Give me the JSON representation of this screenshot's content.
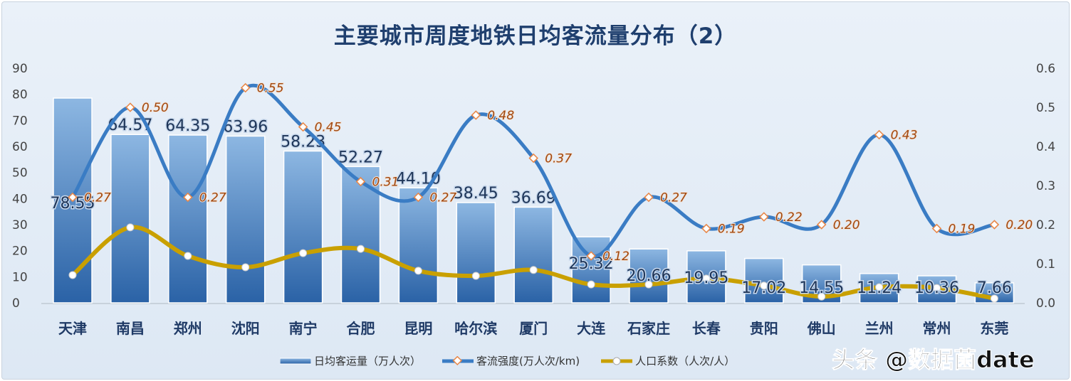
{
  "chart_data": {
    "type": "bar+line",
    "title": "主要城市周度地铁日均客流量分布（2）",
    "categories": [
      "天津",
      "南昌",
      "郑州",
      "沈阳",
      "南宁",
      "合肥",
      "昆明",
      "哈尔滨",
      "厦门",
      "大连",
      "石家庄",
      "长春",
      "贵阳",
      "佛山",
      "兰州",
      "常州",
      "东莞"
    ],
    "left_axis": {
      "range": [
        0,
        90
      ],
      "ticks": [
        "0",
        "10",
        "20",
        "30",
        "40",
        "50",
        "60",
        "70",
        "80",
        "90"
      ]
    },
    "right_axis": {
      "range": [
        0,
        0.6
      ],
      "ticks": [
        "0.0",
        "0.1",
        "0.2",
        "0.3",
        "0.4",
        "0.5",
        "0.6"
      ]
    },
    "grid": false,
    "legend_position": "bottom",
    "series": [
      {
        "name": "日均客运量（万人次）",
        "type": "bar",
        "axis": "left",
        "color": "#3f7cc0",
        "values": [
          78.55,
          64.57,
          64.35,
          63.96,
          58.23,
          52.27,
          44.1,
          38.45,
          36.69,
          25.32,
          20.66,
          19.95,
          17.02,
          14.55,
          11.24,
          10.36,
          7.66
        ],
        "labels": [
          "78.55",
          "64.57",
          "64.35",
          "63.96",
          "58.23",
          "52.27",
          "44.10",
          "38.45",
          "36.69",
          "25.32",
          "20.66",
          "19.95",
          "17.02",
          "14.55",
          "11.24",
          "10.36",
          "7.66"
        ]
      },
      {
        "name": "客流强度(万人次/km)",
        "type": "line",
        "axis": "right",
        "color": "#3a7cc4",
        "marker_color": "#e8884a",
        "values": [
          0.27,
          0.5,
          0.27,
          0.55,
          0.45,
          0.31,
          0.27,
          0.48,
          0.37,
          0.12,
          0.27,
          0.19,
          0.22,
          0.2,
          0.43,
          0.19,
          0.2
        ],
        "labels": [
          "0.27",
          "0.50",
          "0.27",
          "0.55",
          "0.45",
          "0.31",
          "0.27",
          "0.48",
          "0.37",
          "0.12",
          "0.27",
          "0.19",
          "0.22",
          "0.20",
          "0.43",
          "0.19",
          "0.20"
        ]
      },
      {
        "name": "人口系数（人次/人）",
        "type": "line",
        "axis": "right",
        "color": "#c9a000",
        "values": [
          0.071,
          0.193,
          0.12,
          0.091,
          0.127,
          0.138,
          0.082,
          0.069,
          0.084,
          0.047,
          0.047,
          0.062,
          0.044,
          0.016,
          0.04,
          0.038,
          0.011
        ]
      }
    ]
  },
  "watermark": "头条 @数据菌date"
}
